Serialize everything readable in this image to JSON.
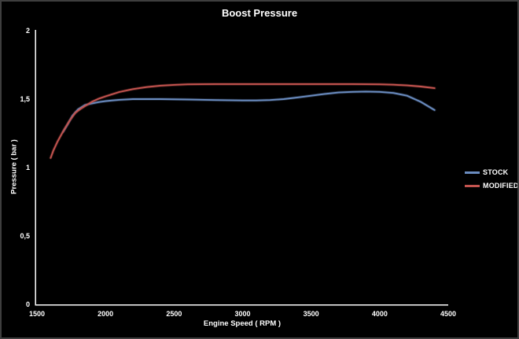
{
  "chart": {
    "title": "Boost Pressure",
    "xlabel": "Engine Speed ( RPM )",
    "ylabel": "Pressure ( bar )"
  },
  "legend": {
    "items": [
      {
        "label": "STOCK",
        "color": "#6a8cc0"
      },
      {
        "label": "MODIFIED",
        "color": "#c4544f"
      }
    ]
  },
  "colors": {
    "background": "#000000",
    "frame_border": "#3e3e3e",
    "axis": "#ffffff",
    "text": "#ffffff",
    "stock_line": "#6a8cc0",
    "modified_line": "#c4544f"
  },
  "chart_data": {
    "type": "line",
    "title": "Boost Pressure",
    "xlabel": "Engine Speed ( RPM )",
    "ylabel": "Pressure ( bar )",
    "xlim": [
      1500,
      4500
    ],
    "ylim": [
      0,
      2
    ],
    "x_ticks": [
      1500,
      2000,
      2500,
      3000,
      3500,
      4000,
      4500
    ],
    "x_tick_labels": [
      "1500",
      "2000",
      "2500",
      "3000",
      "3500",
      "4000",
      "4500"
    ],
    "y_ticks": [
      0,
      0.5,
      1,
      1.5,
      2
    ],
    "y_tick_labels": [
      "0",
      "0,5",
      "1",
      "1,5",
      "2"
    ],
    "grid": false,
    "legend_position": "right",
    "series": [
      {
        "name": "STOCK",
        "color": "#6a8cc0",
        "points": [
          [
            1690,
            1.26
          ],
          [
            1720,
            1.31
          ],
          [
            1760,
            1.38
          ],
          [
            1800,
            1.425
          ],
          [
            1850,
            1.457
          ],
          [
            1900,
            1.468
          ],
          [
            1950,
            1.478
          ],
          [
            2000,
            1.485
          ],
          [
            2050,
            1.49
          ],
          [
            2100,
            1.495
          ],
          [
            2200,
            1.5
          ],
          [
            2400,
            1.5
          ],
          [
            2600,
            1.497
          ],
          [
            2800,
            1.493
          ],
          [
            3000,
            1.49
          ],
          [
            3100,
            1.49
          ],
          [
            3200,
            1.493
          ],
          [
            3300,
            1.5
          ],
          [
            3400,
            1.512
          ],
          [
            3500,
            1.525
          ],
          [
            3600,
            1.538
          ],
          [
            3700,
            1.548
          ],
          [
            3800,
            1.553
          ],
          [
            3900,
            1.555
          ],
          [
            4000,
            1.553
          ],
          [
            4100,
            1.545
          ],
          [
            4200,
            1.525
          ],
          [
            4300,
            1.48
          ],
          [
            4400,
            1.42
          ]
        ]
      },
      {
        "name": "MODIFIED",
        "color": "#c4544f",
        "points": [
          [
            1600,
            1.07
          ],
          [
            1620,
            1.125
          ],
          [
            1650,
            1.19
          ],
          [
            1680,
            1.245
          ],
          [
            1700,
            1.28
          ],
          [
            1740,
            1.345
          ],
          [
            1780,
            1.4
          ],
          [
            1820,
            1.43
          ],
          [
            1860,
            1.455
          ],
          [
            1900,
            1.48
          ],
          [
            1950,
            1.503
          ],
          [
            2000,
            1.52
          ],
          [
            2100,
            1.552
          ],
          [
            2200,
            1.573
          ],
          [
            2300,
            1.588
          ],
          [
            2400,
            1.598
          ],
          [
            2500,
            1.604
          ],
          [
            2600,
            1.608
          ],
          [
            2800,
            1.61
          ],
          [
            3000,
            1.61
          ],
          [
            3200,
            1.61
          ],
          [
            3400,
            1.61
          ],
          [
            3600,
            1.61
          ],
          [
            3800,
            1.61
          ],
          [
            4000,
            1.608
          ],
          [
            4100,
            1.605
          ],
          [
            4200,
            1.6
          ],
          [
            4300,
            1.592
          ],
          [
            4400,
            1.58
          ]
        ]
      }
    ]
  }
}
